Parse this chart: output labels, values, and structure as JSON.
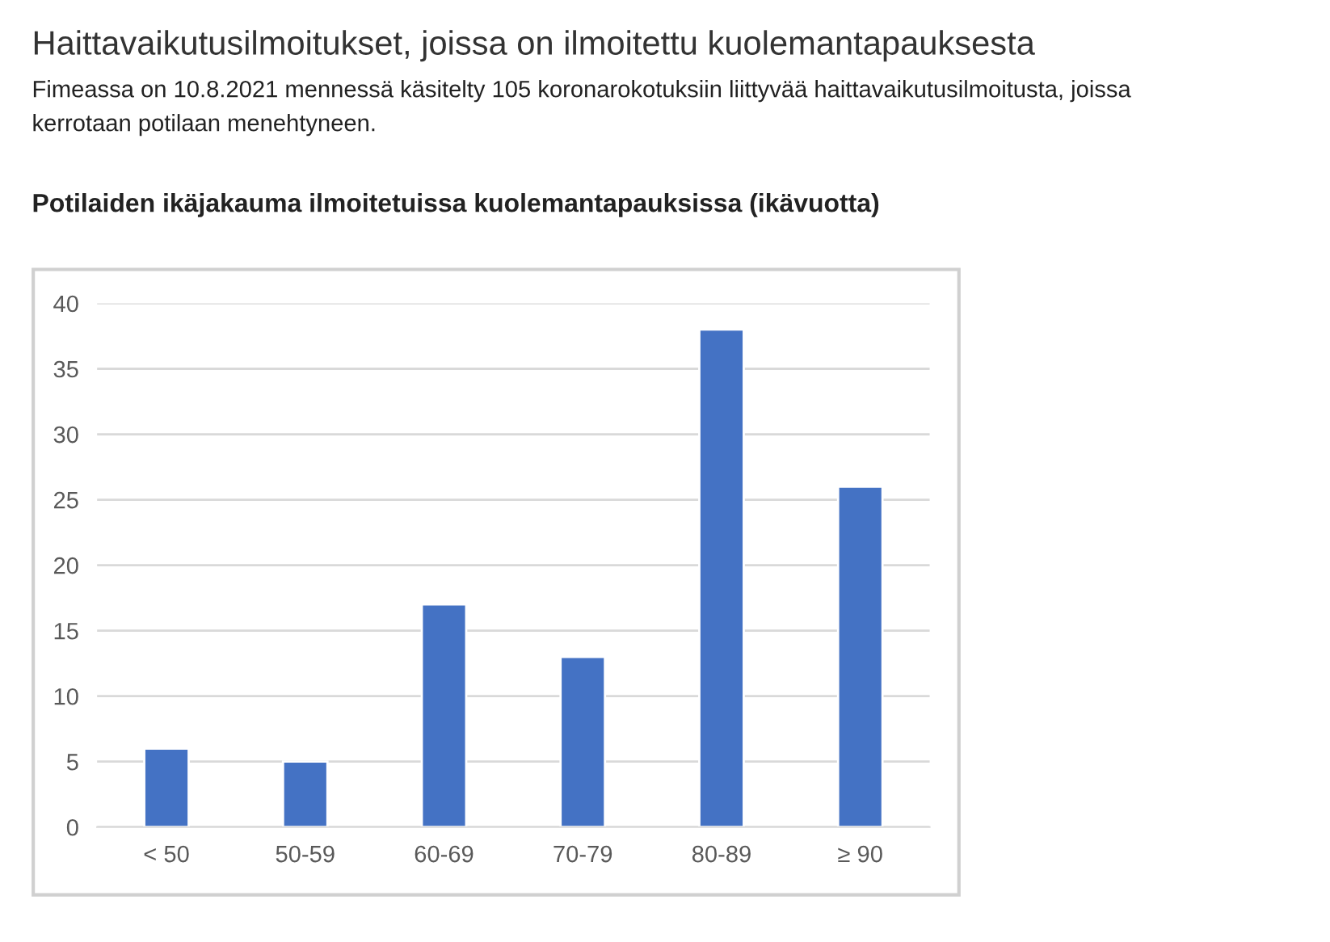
{
  "chart_data": {
    "type": "bar",
    "title": "Potilaiden ikäjakauma ilmoitetuissa kuolemantapauksissa (ikävuotta)",
    "annotations": [
      "Haittavaikutusilmoitukset, joissa on ilmoitettu kuolemantapauksesta",
      "Fimeassa on 10.8.2021 mennessä käsitelty 105 koronarokotuksiin liittyvää haittavaikutusilmoitusta, joissa\nkerrotaan potilaan menehtyneen."
    ],
    "categories": [
      "< 50",
      "50-59",
      "60-69",
      "70-79",
      "80-89",
      "≥ 90"
    ],
    "values": [
      6,
      5,
      17,
      13,
      38,
      26
    ],
    "color": "#4472c4",
    "ylim": [
      0,
      40
    ],
    "yticks": [
      0,
      5,
      10,
      15,
      20,
      25,
      30,
      35,
      40
    ],
    "grid": "y",
    "legend": false
  }
}
